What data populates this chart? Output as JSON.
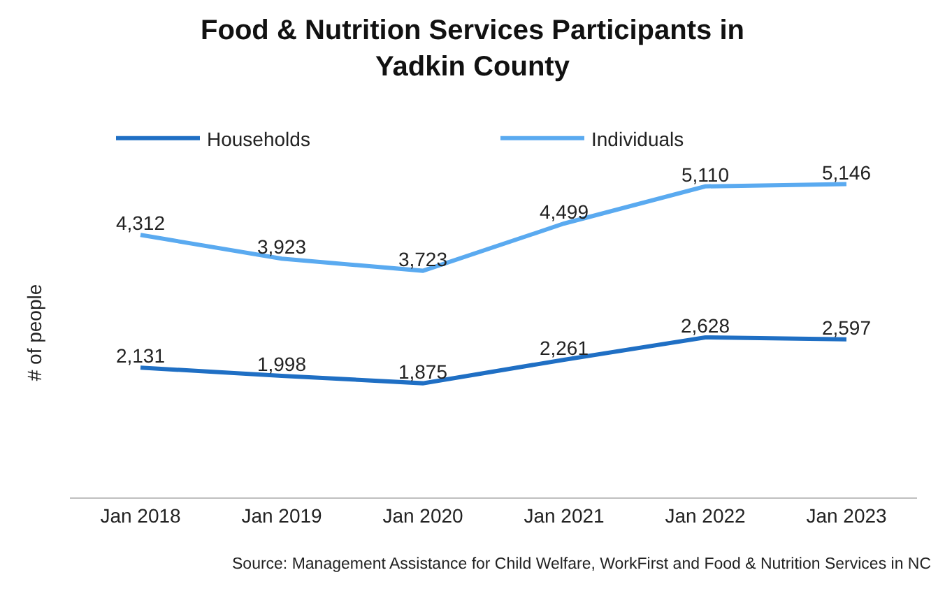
{
  "chart_data": {
    "type": "line",
    "title": "Food & Nutrition Services Participants in\nYadkin County",
    "ylabel": "# of people",
    "categories": [
      "Jan 2018",
      "Jan 2019",
      "Jan 2020",
      "Jan 2021",
      "Jan 2022",
      "Jan 2023"
    ],
    "series": [
      {
        "name": "Households",
        "color": "#1f6fc4",
        "values": [
          2131,
          1998,
          1875,
          2261,
          2628,
          2597
        ],
        "value_labels": [
          "2,131",
          "1,998",
          "1,875",
          "2,261",
          "2,628",
          "2,597"
        ]
      },
      {
        "name": "Individuals",
        "color": "#5aaaf0",
        "values": [
          4312,
          3923,
          3723,
          4499,
          5110,
          5146
        ],
        "value_labels": [
          "4,312",
          "3,923",
          "3,723",
          "4,499",
          "5,110",
          "5,146"
        ]
      }
    ],
    "tick_labels": "x",
    "legend": "top",
    "marker": "none",
    "line_style": "solid",
    "annotations": [
      "Source: Management Assistance for Child Welfare, WorkFirst and Food & Nutrition Services in NC"
    ]
  }
}
